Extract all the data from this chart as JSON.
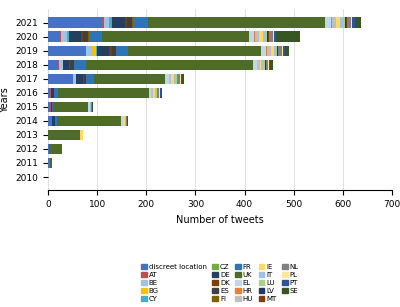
{
  "years": [
    2010,
    2011,
    2012,
    2013,
    2014,
    2015,
    2016,
    2017,
    2018,
    2019,
    2020,
    2021
  ],
  "categories": [
    "discreet location",
    "AT",
    "BE",
    "BG",
    "CY",
    "CZ",
    "DE",
    "DK",
    "ES",
    "FI",
    "FR",
    "UK",
    "EL",
    "HR",
    "HU",
    "IE",
    "IT",
    "LU",
    "LV",
    "MT",
    "NL",
    "PL",
    "PT",
    "SE"
  ],
  "colors": {
    "discreet location": "#4472C4",
    "AT": "#C0504D",
    "BE": "#9DC3E6",
    "BG": "#FFC000",
    "CY": "#4BACC6",
    "CZ": "#70AD47",
    "DE": "#243F60",
    "DK": "#7B3F00",
    "ES": "#404040",
    "FI": "#7F6000",
    "FR": "#2E75B6",
    "UK": "#4E6B28",
    "EL": "#BDD7EE",
    "HR": "#ED7D31",
    "HU": "#BFBFBF",
    "IE": "#FFD966",
    "IT": "#9DC3E6",
    "LU": "#A9D18E",
    "LV": "#203864",
    "MT": "#843C0C",
    "NL": "#808080",
    "PL": "#FFE699",
    "PT": "#2F5597",
    "SE": "#375623"
  },
  "data": {
    "discreet location": [
      0,
      3,
      2,
      0,
      8,
      5,
      5,
      50,
      20,
      75,
      25,
      110
    ],
    "AT": [
      0,
      1,
      1,
      1,
      1,
      1,
      2,
      1,
      2,
      2,
      2,
      3
    ],
    "BE": [
      0,
      0,
      0,
      0,
      0,
      0,
      0,
      5,
      8,
      12,
      12,
      12
    ],
    "BG": [
      0,
      0,
      0,
      0,
      0,
      0,
      0,
      0,
      0,
      8,
      0,
      0
    ],
    "CY": [
      0,
      0,
      0,
      0,
      0,
      0,
      0,
      0,
      0,
      3,
      3,
      3
    ],
    "CZ": [
      0,
      0,
      0,
      0,
      0,
      0,
      0,
      0,
      0,
      0,
      0,
      3
    ],
    "DE": [
      0,
      0,
      0,
      0,
      5,
      2,
      5,
      15,
      12,
      25,
      25,
      25
    ],
    "DK": [
      0,
      0,
      0,
      0,
      0,
      0,
      0,
      2,
      3,
      5,
      5,
      5
    ],
    "ES": [
      0,
      0,
      0,
      0,
      0,
      0,
      0,
      5,
      8,
      8,
      10,
      10
    ],
    "FI": [
      0,
      0,
      0,
      0,
      0,
      0,
      0,
      0,
      0,
      0,
      2,
      2
    ],
    "FR": [
      0,
      0,
      0,
      0,
      5,
      3,
      8,
      15,
      25,
      25,
      25,
      30
    ],
    "UK": [
      0,
      5,
      25,
      65,
      130,
      70,
      185,
      145,
      340,
      270,
      300,
      360
    ],
    "EL": [
      0,
      0,
      0,
      0,
      5,
      2,
      5,
      8,
      8,
      10,
      10,
      12
    ],
    "HR": [
      0,
      0,
      0,
      0,
      0,
      0,
      0,
      0,
      0,
      3,
      3,
      3
    ],
    "HU": [
      0,
      0,
      0,
      0,
      0,
      0,
      3,
      5,
      5,
      8,
      8,
      8
    ],
    "IE": [
      0,
      0,
      0,
      5,
      2,
      2,
      5,
      5,
      3,
      5,
      8,
      8
    ],
    "IT": [
      0,
      0,
      0,
      0,
      2,
      2,
      2,
      5,
      5,
      5,
      5,
      8
    ],
    "LU": [
      0,
      0,
      0,
      0,
      0,
      0,
      2,
      2,
      2,
      2,
      2,
      2
    ],
    "LV": [
      0,
      0,
      0,
      0,
      0,
      0,
      0,
      0,
      2,
      2,
      2,
      2
    ],
    "MT": [
      0,
      0,
      0,
      0,
      0,
      0,
      0,
      0,
      0,
      0,
      2,
      2
    ],
    "NL": [
      0,
      0,
      0,
      0,
      2,
      2,
      3,
      5,
      5,
      8,
      8,
      8
    ],
    "PL": [
      0,
      0,
      0,
      0,
      0,
      0,
      2,
      2,
      2,
      3,
      3,
      3
    ],
    "PT": [
      0,
      0,
      0,
      0,
      0,
      0,
      2,
      2,
      2,
      3,
      3,
      5
    ],
    "SE": [
      0,
      0,
      0,
      0,
      2,
      2,
      3,
      5,
      5,
      8,
      50,
      12
    ]
  },
  "xlabel": "Number of tweets",
  "ylabel": "Years",
  "xlim_max": 700,
  "xticks": [
    0,
    100,
    200,
    300,
    400,
    500,
    600,
    700
  ],
  "bar_height": 0.72,
  "figsize": [
    4.0,
    3.07
  ],
  "dpi": 100,
  "legend_ncol": 5,
  "legend_fontsize": 5.0,
  "axis_fontsize": 7,
  "tick_fontsize": 6.5,
  "background": "#FFFFFF"
}
